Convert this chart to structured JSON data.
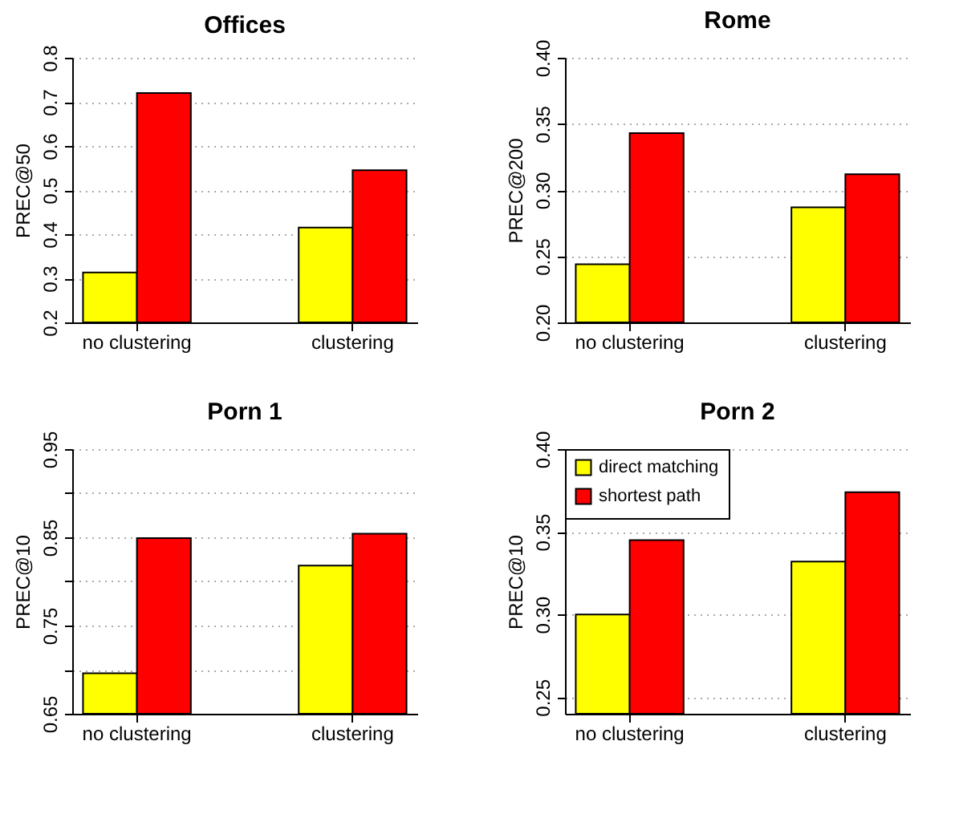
{
  "chart_data": [
    {
      "type": "bar",
      "title": "Offices",
      "ylabel": "PREC@50",
      "categories": [
        "no clustering",
        "clustering"
      ],
      "ylim": [
        0.2,
        0.8
      ],
      "yticks": [
        0.2,
        0.3,
        0.4,
        0.5,
        0.6,
        0.7,
        0.8
      ],
      "grid": "y",
      "series": [
        {
          "color": "#ffff00",
          "values": [
            0.313,
            0.415
          ]
        },
        {
          "color": "#ff0000",
          "values": [
            0.72,
            0.545
          ]
        }
      ]
    },
    {
      "type": "bar",
      "title": "Rome",
      "ylabel": "PREC@200",
      "categories": [
        "no clustering",
        "clustering"
      ],
      "ylim": [
        0.2,
        0.4
      ],
      "yticks": [
        {
          "value": 0.2,
          "label": "0.20"
        },
        {
          "value": 0.25,
          "label": "0.25"
        },
        {
          "value": 0.3,
          "label": "0.30"
        },
        {
          "value": 0.35,
          "label": "0.35"
        },
        {
          "value": 0.4,
          "label": "0.40"
        }
      ],
      "grid": "y",
      "series": [
        {
          "color": "#ffff00",
          "values": [
            0.244,
            0.287
          ]
        },
        {
          "color": "#ff0000",
          "values": [
            0.343,
            0.312
          ]
        }
      ]
    },
    {
      "type": "bar",
      "title": "Porn 1",
      "ylabel": "PREC@10",
      "categories": [
        "no clustering",
        "clustering"
      ],
      "ylim": [
        0.65,
        0.95
      ],
      "yticks": [
        0.65,
        {
          "value": 0.7,
          "label": null
        },
        0.75,
        {
          "value": 0.8,
          "label": null
        },
        0.85,
        {
          "value": 0.9,
          "label": null
        },
        0.95
      ],
      "grid": "y",
      "series": [
        {
          "color": "#ffff00",
          "values": [
            0.696,
            0.818
          ]
        },
        {
          "color": "#ff0000",
          "values": [
            0.849,
            0.854
          ]
        }
      ]
    },
    {
      "type": "bar",
      "title": "Porn 2",
      "ylabel": "PREC@10",
      "categories": [
        "no clustering",
        "clustering"
      ],
      "ylim": [
        0.24,
        0.4
      ],
      "yticks": [
        0.25,
        {
          "value": 0.3,
          "label": "0.30"
        },
        0.35,
        {
          "value": 0.4,
          "label": "0.40"
        }
      ],
      "grid": "y",
      "legend": "top left",
      "series": [
        {
          "name": "direct matching",
          "color": "#ffff00",
          "values": [
            0.3,
            0.332
          ]
        },
        {
          "name": "shortest path",
          "color": "#ff0000",
          "values": [
            0.345,
            0.374
          ]
        }
      ]
    }
  ]
}
